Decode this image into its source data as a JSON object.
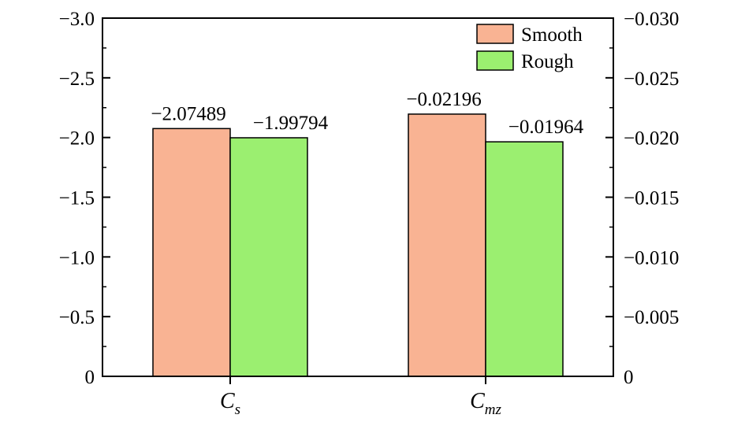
{
  "chart_data": {
    "type": "bar",
    "categories": [
      {
        "base": "C",
        "sub": "s"
      },
      {
        "base": "C",
        "sub": "mz"
      }
    ],
    "series": [
      {
        "name": "Smooth",
        "color": "#F9B393",
        "values": [
          -2.07489,
          -0.02196
        ],
        "labels": [
          "−2.07489",
          "−0.02196"
        ]
      },
      {
        "name": "Rough",
        "color": "#9BEF70",
        "values": [
          -1.99794,
          -0.01964
        ],
        "labels": [
          "−1.99794",
          "−0.01964"
        ]
      }
    ],
    "axes": [
      {
        "side": "left",
        "ylim": [
          0,
          -3.0
        ],
        "ticks": [
          "0",
          "−0.5",
          "−1.0",
          "−1.5",
          "−2.0",
          "−2.5",
          "−3.0"
        ],
        "applies_to_category": 0
      },
      {
        "side": "right",
        "ylim": [
          0,
          -0.03
        ],
        "ticks": [
          "0",
          "−0.005",
          "−0.010",
          "−0.015",
          "−0.020",
          "−0.025",
          "−0.030"
        ],
        "applies_to_category": 1
      }
    ],
    "legend": {
      "position": "top-right"
    },
    "grid": false,
    "title": "",
    "xlabel": "",
    "ylabel": ""
  }
}
